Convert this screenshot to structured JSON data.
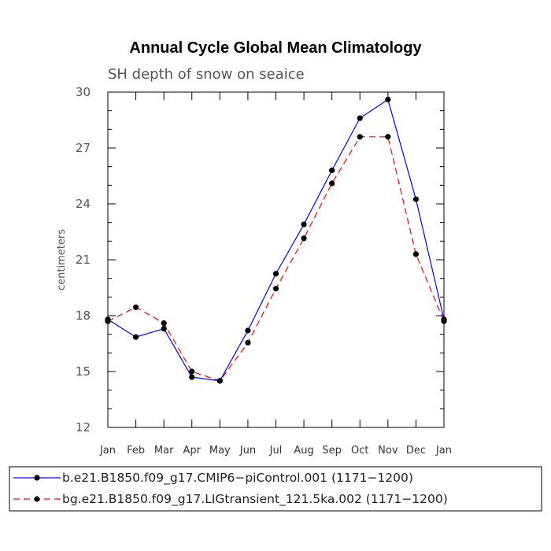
{
  "chart_data": {
    "type": "line",
    "title": "Annual Cycle Global Mean Climatology",
    "subtitle": "SH depth of snow on seaice",
    "xlabel": "",
    "ylabel": "centimeters",
    "categories": [
      "Jan",
      "Feb",
      "Mar",
      "Apr",
      "May",
      "Jun",
      "Jul",
      "Aug",
      "Sep",
      "Oct",
      "Nov",
      "Dec",
      "Jan"
    ],
    "ylim": [
      12,
      30
    ],
    "yticks": [
      "12",
      "15",
      "18",
      "21",
      "24",
      "27",
      "30"
    ],
    "grid": false,
    "legend_position": "bottom",
    "series": [
      {
        "name": "b.e21.B1850.f09_g17.CMIP6−piControl.001 (1171−1200)",
        "color": "#0000ff",
        "dash": "solid",
        "marker": "filled-circle",
        "values": [
          17.8,
          16.85,
          17.3,
          14.7,
          14.5,
          17.2,
          20.25,
          22.9,
          25.8,
          28.6,
          29.6,
          24.25,
          17.8
        ]
      },
      {
        "name": "bg.e21.B1850.f09_g17.LIGtransient_121.5ka.002 (1171−1200)",
        "color": "#ff0000",
        "dash": "dashed",
        "marker": "filled-circle",
        "values": [
          17.7,
          18.45,
          17.6,
          15.0,
          14.5,
          16.55,
          19.45,
          22.15,
          25.1,
          27.6,
          27.6,
          21.3,
          17.7
        ]
      }
    ]
  }
}
